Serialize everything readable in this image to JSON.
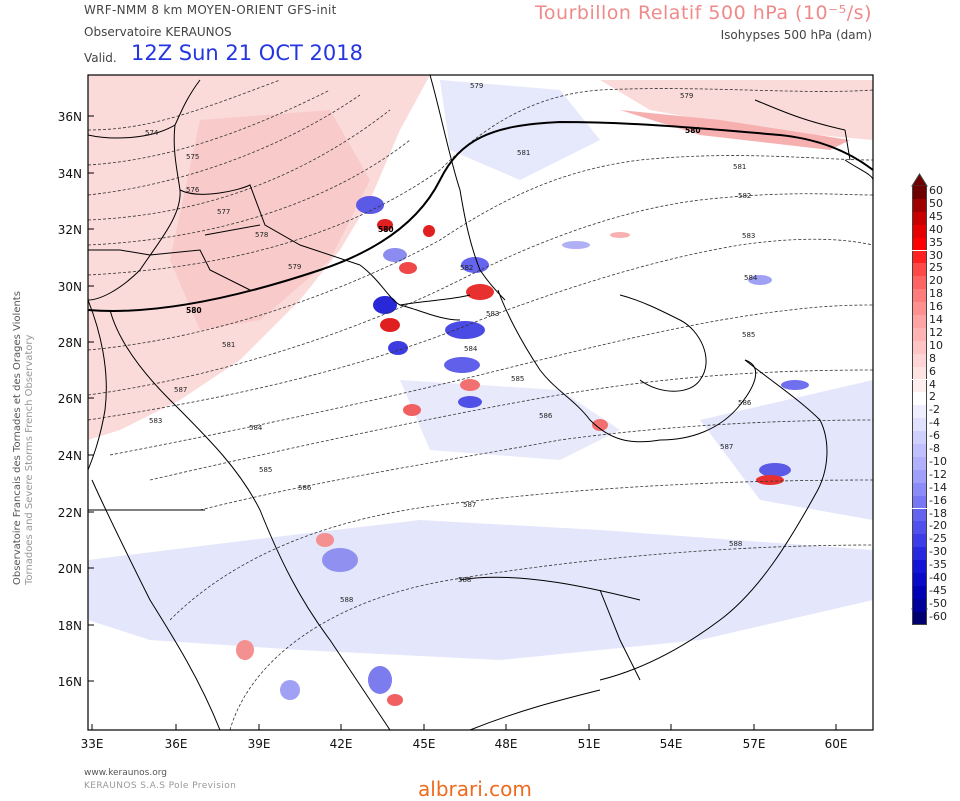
{
  "header": {
    "model": "WRF-NMM 8 km MOYEN-ORIENT   GFS-init",
    "observatory": "Observatoire KERAUNOS",
    "valid_label": "Valid.",
    "valid_date": "12Z Sun 21 OCT 2018",
    "field_title": "Tourbillon Relatif 500 hPa (10⁻⁵/s)",
    "isohypse_subtitle": "Isohypses 500 hPa (dam)"
  },
  "side_text": {
    "line1": "Observatoire Francais des Tornades et des Orages Violents",
    "line2": "Tornadoes and Severe Storms French Observatory"
  },
  "footer": {
    "url": "www.keraunos.org",
    "company": "KERAUNOS S.A.S Pole Prevision",
    "watermark": "albrari.com"
  },
  "map": {
    "lat_labels": [
      "36N",
      "34N",
      "32N",
      "30N",
      "28N",
      "26N",
      "24N",
      "22N",
      "20N",
      "18N",
      "16N"
    ],
    "lon_labels": [
      "33E",
      "36E",
      "39E",
      "42E",
      "45E",
      "48E",
      "51E",
      "54E",
      "57E",
      "60E"
    ],
    "isohypse_labels": [
      "574",
      "575",
      "576",
      "577",
      "578",
      "579",
      "579",
      "579",
      "580",
      "580",
      "580",
      "581",
      "581",
      "581",
      "582",
      "582",
      "583",
      "583",
      "583",
      "584",
      "584",
      "584",
      "585",
      "585",
      "585",
      "586",
      "586",
      "586",
      "587",
      "587",
      "587",
      "588",
      "588",
      "588"
    ],
    "colors": {
      "land_border": "#000000",
      "isohypse": "#333333",
      "pos_vort": "#f7b6b6",
      "neg_vort": "#c9cdf5"
    }
  },
  "legend": {
    "labels": [
      "60",
      "50",
      "45",
      "40",
      "35",
      "30",
      "25",
      "20",
      "18",
      "16",
      "14",
      "12",
      "10",
      "8",
      "6",
      "4",
      "2",
      "-2",
      "-4",
      "-6",
      "-8",
      "-10",
      "-12",
      "-14",
      "-16",
      "-18",
      "-20",
      "-25",
      "-30",
      "-35",
      "-40",
      "-45",
      "-50",
      "-60"
    ],
    "colors": [
      "#6e0000",
      "#a00000",
      "#c80000",
      "#e60000",
      "#ff0000",
      "#ff2020",
      "#ff4848",
      "#ff6464",
      "#ff7c7c",
      "#ff9090",
      "#ffa4a4",
      "#ffb4b4",
      "#ffc4c4",
      "#ffd4d4",
      "#ffe2e2",
      "#ffeeee",
      "#ffffff",
      "#eeeeff",
      "#e0e0ff",
      "#d0d0ff",
      "#c0c0ff",
      "#b0b0fc",
      "#a0a0fa",
      "#8c8cf8",
      "#7878f4",
      "#6464f0",
      "#5050ec",
      "#3c3ce8",
      "#2828e0",
      "#1414d8",
      "#0a0ac8",
      "#0000b4",
      "#00009a",
      "#000070"
    ]
  }
}
